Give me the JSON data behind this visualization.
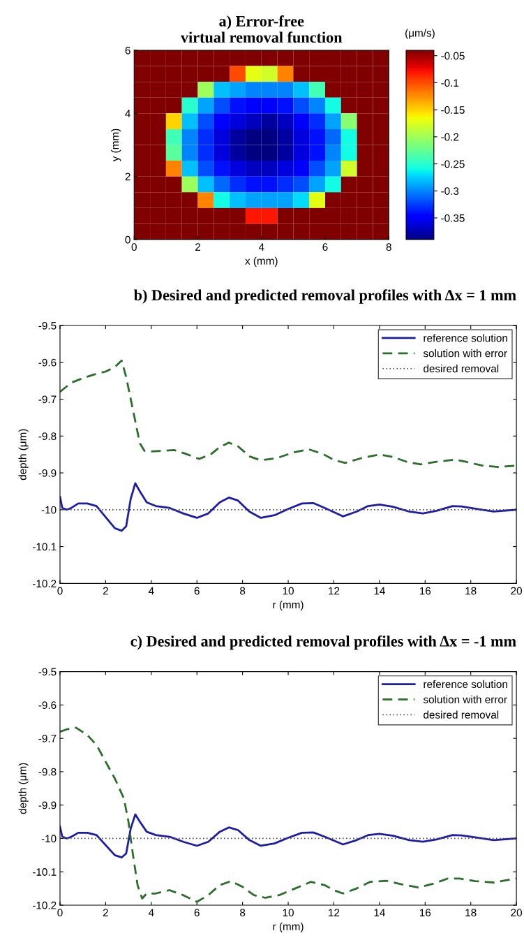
{
  "chart_data": [
    {
      "type": "heatmap",
      "title": "a) Error-free\nvirtual removal function",
      "xlabel": "x (mm)",
      "ylabel": "y (mm)",
      "clabel": "(μm/s)",
      "x": [
        0.25,
        0.75,
        1.25,
        1.75,
        2.25,
        2.75,
        3.25,
        3.75,
        4.25,
        4.75,
        5.25,
        5.75,
        6.25,
        6.75,
        7.25,
        7.75
      ],
      "y": [
        5.75,
        5.25,
        4.75,
        4.25,
        3.75,
        3.25,
        2.75,
        2.25,
        1.75,
        1.25,
        0.75,
        0.25
      ],
      "xlim": [
        0,
        8
      ],
      "xticks": [
        0,
        2,
        4,
        6,
        8
      ],
      "ylim": [
        0,
        6
      ],
      "yticks": [
        0,
        2,
        4,
        6
      ],
      "clim": [
        -0.39,
        -0.04
      ],
      "cticks": [
        -0.05,
        -0.1,
        -0.15,
        -0.2,
        -0.25,
        -0.3,
        -0.35
      ],
      "cells": [
        [
          -0.04,
          -0.04,
          -0.04,
          -0.04,
          -0.04,
          -0.04,
          -0.04,
          -0.04,
          -0.04,
          -0.04,
          -0.04,
          -0.04,
          -0.04,
          -0.04,
          -0.04,
          -0.04
        ],
        [
          -0.04,
          -0.04,
          -0.04,
          -0.04,
          -0.04,
          -0.04,
          -0.1,
          -0.17,
          -0.18,
          -0.12,
          -0.04,
          -0.04,
          -0.04,
          -0.04,
          -0.04,
          -0.04
        ],
        [
          -0.04,
          -0.04,
          -0.04,
          -0.04,
          -0.2,
          -0.28,
          -0.29,
          -0.3,
          -0.3,
          -0.3,
          -0.28,
          -0.24,
          -0.04,
          -0.04,
          -0.04,
          -0.04
        ],
        [
          -0.04,
          -0.04,
          -0.04,
          -0.25,
          -0.29,
          -0.32,
          -0.34,
          -0.35,
          -0.35,
          -0.34,
          -0.32,
          -0.3,
          -0.26,
          -0.04,
          -0.04,
          -0.04
        ],
        [
          -0.04,
          -0.04,
          -0.15,
          -0.28,
          -0.32,
          -0.35,
          -0.36,
          -0.37,
          -0.38,
          -0.37,
          -0.35,
          -0.33,
          -0.29,
          -0.21,
          -0.04,
          -0.04
        ],
        [
          -0.04,
          -0.04,
          -0.24,
          -0.3,
          -0.33,
          -0.36,
          -0.38,
          -0.39,
          -0.39,
          -0.38,
          -0.36,
          -0.34,
          -0.31,
          -0.26,
          -0.04,
          -0.04
        ],
        [
          -0.04,
          -0.04,
          -0.23,
          -0.3,
          -0.33,
          -0.36,
          -0.38,
          -0.39,
          -0.39,
          -0.38,
          -0.36,
          -0.34,
          -0.3,
          -0.26,
          -0.04,
          -0.04
        ],
        [
          -0.04,
          -0.04,
          -0.12,
          -0.28,
          -0.32,
          -0.34,
          -0.36,
          -0.37,
          -0.37,
          -0.36,
          -0.35,
          -0.32,
          -0.29,
          -0.18,
          -0.04,
          -0.04
        ],
        [
          -0.04,
          -0.04,
          -0.04,
          -0.2,
          -0.28,
          -0.31,
          -0.33,
          -0.34,
          -0.34,
          -0.33,
          -0.32,
          -0.29,
          -0.26,
          -0.04,
          -0.04,
          -0.04
        ],
        [
          -0.04,
          -0.04,
          -0.04,
          -0.04,
          -0.12,
          -0.26,
          -0.28,
          -0.29,
          -0.29,
          -0.29,
          -0.27,
          -0.17,
          -0.04,
          -0.04,
          -0.04,
          -0.04
        ],
        [
          -0.04,
          -0.04,
          -0.04,
          -0.04,
          -0.04,
          -0.04,
          -0.04,
          -0.08,
          -0.08,
          -0.04,
          -0.04,
          -0.04,
          -0.04,
          -0.04,
          -0.04,
          -0.04
        ],
        [
          -0.04,
          -0.04,
          -0.04,
          -0.04,
          -0.04,
          -0.04,
          -0.04,
          -0.04,
          -0.04,
          -0.04,
          -0.04,
          -0.04,
          -0.04,
          -0.04,
          -0.04,
          -0.04
        ]
      ]
    },
    {
      "type": "line",
      "title": "b) Desired and predicted removal profiles with Δx = 1 mm",
      "xlabel": "r (mm)",
      "ylabel": "depth (μm)",
      "xlim": [
        0,
        20
      ],
      "xticks": [
        0,
        2,
        4,
        6,
        8,
        10,
        12,
        14,
        16,
        18,
        20
      ],
      "ylim": [
        -10.2,
        -9.5
      ],
      "yticks": [
        -10.2,
        -10.1,
        -10,
        -9.9,
        -9.8,
        -9.7,
        -9.6,
        -9.5
      ],
      "legend": "top right",
      "grid": false,
      "series": [
        {
          "name": "reference solution",
          "color": "#1c1ca8",
          "line_style": "solid",
          "x": [
            0,
            0.1,
            0.3,
            0.5,
            0.8,
            1.2,
            1.6,
            2.0,
            2.4,
            2.7,
            2.9,
            3.1,
            3.3,
            3.5,
            3.8,
            4.2,
            4.8,
            5.4,
            6.0,
            6.5,
            7.0,
            7.4,
            7.8,
            8.3,
            8.8,
            9.4,
            10.0,
            10.6,
            11.1,
            11.6,
            12.4,
            13.0,
            13.5,
            14.0,
            14.6,
            15.3,
            15.9,
            16.5,
            17.2,
            17.6,
            18.3,
            19.0,
            20
          ],
          "values": [
            -9.965,
            -9.995,
            -10.0,
            -9.995,
            -9.983,
            -9.983,
            -9.99,
            -10.02,
            -10.05,
            -10.057,
            -10.045,
            -9.97,
            -9.928,
            -9.95,
            -9.98,
            -9.99,
            -9.995,
            -10.01,
            -10.022,
            -10.01,
            -9.98,
            -9.967,
            -9.975,
            -10.005,
            -10.022,
            -10.015,
            -9.998,
            -9.983,
            -9.982,
            -9.995,
            -10.018,
            -10.005,
            -9.99,
            -9.986,
            -9.992,
            -10.005,
            -10.01,
            -10.003,
            -9.99,
            -9.991,
            -9.998,
            -10.005,
            -10.0
          ]
        },
        {
          "name": "solution with error",
          "color": "#2a6e2a",
          "line_style": "dashed",
          "x": [
            0,
            0.5,
            1.0,
            1.5,
            2.0,
            2.4,
            2.7,
            2.9,
            3.2,
            3.5,
            3.7,
            4.0,
            4.5,
            5.0,
            5.5,
            6.1,
            6.6,
            7.0,
            7.4,
            7.8,
            8.3,
            8.8,
            9.5,
            10.2,
            10.9,
            11.5,
            12.0,
            12.5,
            13.2,
            14.0,
            14.6,
            15.2,
            15.8,
            16.5,
            17.3,
            17.8,
            18.5,
            19.2,
            20
          ],
          "values": [
            -9.68,
            -9.655,
            -9.643,
            -9.633,
            -9.625,
            -9.613,
            -9.595,
            -9.64,
            -9.73,
            -9.82,
            -9.84,
            -9.842,
            -9.84,
            -9.838,
            -9.848,
            -9.862,
            -9.85,
            -9.83,
            -9.818,
            -9.828,
            -9.855,
            -9.866,
            -9.86,
            -9.845,
            -9.836,
            -9.848,
            -9.865,
            -9.873,
            -9.86,
            -9.85,
            -9.857,
            -9.87,
            -9.877,
            -9.87,
            -9.864,
            -9.87,
            -9.88,
            -9.884,
            -9.88
          ]
        },
        {
          "name": "desired removal",
          "color": "#555555",
          "line_style": "dotted",
          "x": [
            0,
            20
          ],
          "values": [
            -10,
            -10
          ]
        }
      ]
    },
    {
      "type": "line",
      "title": "c) Desired and predicted removal profiles with Δx = -1 mm",
      "xlabel": "r (mm)",
      "ylabel": "depth (μm)",
      "xlim": [
        0,
        20
      ],
      "xticks": [
        0,
        2,
        4,
        6,
        8,
        10,
        12,
        14,
        16,
        18,
        20
      ],
      "ylim": [
        -10.2,
        -9.5
      ],
      "yticks": [
        -10.2,
        -10.1,
        -10,
        -9.9,
        -9.8,
        -9.7,
        -9.6,
        -9.5
      ],
      "legend": "top right",
      "grid": false,
      "series": [
        {
          "name": "reference solution",
          "color": "#1c1ca8",
          "line_style": "solid",
          "x": [
            0,
            0.1,
            0.3,
            0.5,
            0.8,
            1.2,
            1.6,
            2.0,
            2.4,
            2.7,
            2.9,
            3.1,
            3.3,
            3.5,
            3.8,
            4.2,
            4.8,
            5.4,
            6.0,
            6.5,
            7.0,
            7.4,
            7.8,
            8.3,
            8.8,
            9.4,
            10.0,
            10.6,
            11.1,
            11.6,
            12.4,
            13.0,
            13.5,
            14.0,
            14.6,
            15.3,
            15.9,
            16.5,
            17.2,
            17.6,
            18.3,
            19.0,
            20
          ],
          "values": [
            -9.965,
            -9.995,
            -10.0,
            -9.995,
            -9.983,
            -9.983,
            -9.99,
            -10.02,
            -10.05,
            -10.057,
            -10.045,
            -9.97,
            -9.928,
            -9.95,
            -9.98,
            -9.99,
            -9.995,
            -10.01,
            -10.022,
            -10.01,
            -9.98,
            -9.967,
            -9.975,
            -10.005,
            -10.022,
            -10.015,
            -9.998,
            -9.983,
            -9.982,
            -9.995,
            -10.018,
            -10.005,
            -9.99,
            -9.986,
            -9.992,
            -10.005,
            -10.01,
            -10.003,
            -9.99,
            -9.991,
            -9.998,
            -10.005,
            -10.0
          ]
        },
        {
          "name": "solution with error",
          "color": "#2a6e2a",
          "line_style": "dashed",
          "x": [
            0,
            0.3,
            0.7,
            1.2,
            1.6,
            2.0,
            2.4,
            2.8,
            3.0,
            3.2,
            3.4,
            3.6,
            3.8,
            4.2,
            4.8,
            5.4,
            6.0,
            6.5,
            7.0,
            7.5,
            8.0,
            8.5,
            9.0,
            9.6,
            10.3,
            11.0,
            11.6,
            12.0,
            12.4,
            13.0,
            13.6,
            14.3,
            15.0,
            15.7,
            16.4,
            17.0,
            17.5,
            18.2,
            19.0,
            20
          ],
          "values": [
            -9.68,
            -9.673,
            -9.668,
            -9.69,
            -9.72,
            -9.77,
            -9.82,
            -9.88,
            -9.95,
            -10.05,
            -10.14,
            -10.18,
            -10.165,
            -10.165,
            -10.155,
            -10.17,
            -10.19,
            -10.17,
            -10.14,
            -10.128,
            -10.145,
            -10.17,
            -10.178,
            -10.17,
            -10.15,
            -10.13,
            -10.14,
            -10.155,
            -10.165,
            -10.15,
            -10.13,
            -10.127,
            -10.138,
            -10.147,
            -10.135,
            -10.12,
            -10.12,
            -10.128,
            -10.132,
            -10.12
          ]
        },
        {
          "name": "desired removal",
          "color": "#555555",
          "line_style": "dotted",
          "x": [
            0,
            20
          ],
          "values": [
            -10,
            -10
          ]
        }
      ]
    }
  ]
}
